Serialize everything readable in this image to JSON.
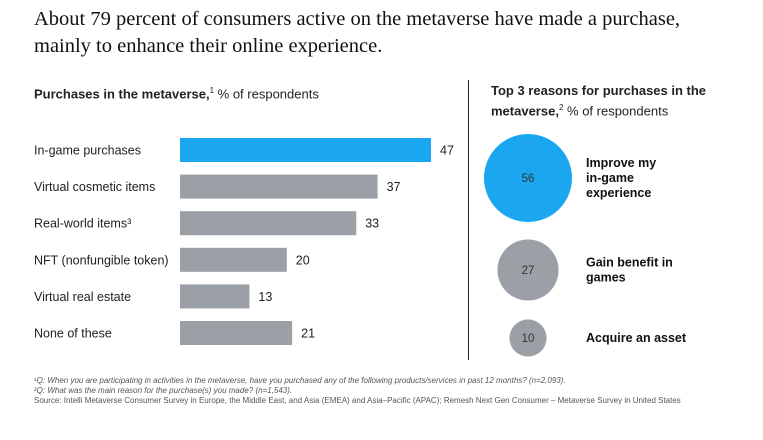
{
  "headline": "About 79 percent of consumers active on the metaverse have made a purchase, mainly to enhance their online experience.",
  "left_title": {
    "bold": "Purchases in the metaverse,",
    "sup": "1",
    "rest": " % of respondents"
  },
  "right_title": {
    "bold": "Top 3 reasons for purchases in the metaverse,",
    "sup": "2",
    "rest": " % of respondents"
  },
  "colors": {
    "highlight": "#1aa7f0",
    "neutral": "#9aa0a6",
    "label": "#222222"
  },
  "chart_data": [
    {
      "type": "bar",
      "orientation": "horizontal",
      "categories": [
        "In-game purchases",
        "Virtual cosmetic items",
        "Real-world items³",
        "NFT (nonfungible token)",
        "Virtual real estate",
        "None of these"
      ],
      "values": [
        47,
        37,
        33,
        20,
        13,
        21
      ],
      "highlight_index": 0,
      "xlim": [
        0,
        50
      ],
      "grid": false
    },
    {
      "type": "bubble",
      "categories": [
        "Improve my in-game experience",
        "Gain benefit in games",
        "Acquire an asset"
      ],
      "values": [
        56,
        27,
        10
      ],
      "highlight_index": 0
    }
  ],
  "footnotes": {
    "q1_mark": "¹",
    "q1": "Q: When you are participating in activities in the metaverse, have you purchased any of the following products/services in past 12 months? (n=2,093).",
    "q2_mark": "²",
    "q2": "Q: What was the main reason for the purchase(s) you made? (n=1,543).",
    "source": "Source: Intelli Metaverse Consumer Survey in Europe, the Middle East, and Asia (EMEA) and Asia–Pacific (APAC); Remesh Next Gen Consumer – Metaverse Survey in United States"
  }
}
